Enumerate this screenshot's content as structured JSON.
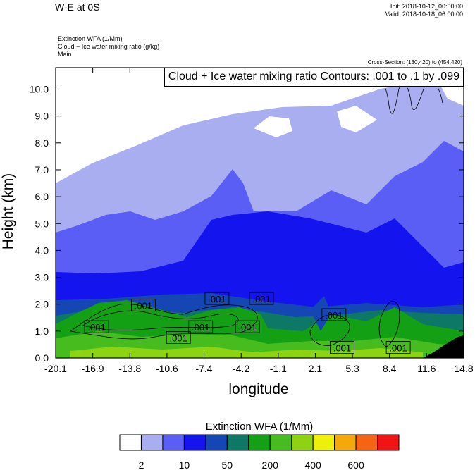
{
  "header": {
    "title": "W-E at 0S",
    "init": "Init: 2018-10-12_00:00:00",
    "valid": "Valid: 2018-10-18_06:00:00",
    "field_lines": [
      "Extinction WFA   (1/Mm)",
      "Cloud + Ice water mixing ratio   (g/kg)",
      "Main"
    ],
    "cross_section": "Cross-Section: (130,420) to (454,420)"
  },
  "contour_legend": "Cloud + Ice water mixing ratio Contours: .001 to .1 by .099",
  "colors": {
    "levels": [
      "#ffffff",
      "#a8aef0",
      "#5a5ef4",
      "#1414ee",
      "#1446b4",
      "#0d7866",
      "#14a014",
      "#46bc1e",
      "#8ed214",
      "#eef00a",
      "#f4a80a",
      "#f46414",
      "#f01414"
    ],
    "terrain": "#000000"
  },
  "chart_data": {
    "type": "heatmap",
    "title": "Cloud + Ice water mixing ratio Contours: .001 to .1 by .099",
    "xlabel": "longitude",
    "ylabel": "Height (km)",
    "xlim": [
      -20.1,
      14.8
    ],
    "ylim": [
      0,
      10.8
    ],
    "x_ticks": [
      "-20.1",
      "-16.9",
      "-13.8",
      "-10.6",
      "-7.4",
      "-4.2",
      "-1.1",
      "2.1",
      "5.3",
      "8.4",
      "11.6",
      "14.8"
    ],
    "y_ticks": [
      "0.0",
      "1.0",
      "2.0",
      "3.0",
      "4.0",
      "5.0",
      "6.0",
      "7.0",
      "8.0",
      "9.0",
      "10.0"
    ],
    "colorbar": {
      "title": "Extinction WFA  (1/Mm)",
      "labels": [
        "2",
        "10",
        "50",
        "200",
        "400",
        "600"
      ],
      "n_bins": 13
    },
    "contour_labels": [
      {
        "text": ".001",
        "x": -16.6,
        "y": 1.15
      },
      {
        "text": ".001",
        "x": -12.6,
        "y": 1.95
      },
      {
        "text": ".001",
        "x": -9.6,
        "y": 0.75
      },
      {
        "text": ".001",
        "x": -7.7,
        "y": 1.15
      },
      {
        "text": ".001",
        "x": -6.3,
        "y": 2.2
      },
      {
        "text": ".001",
        "x": -3.7,
        "y": 1.15
      },
      {
        "text": ".001",
        "x": -2.5,
        "y": 2.2
      },
      {
        "text": ".001",
        "x": 3.7,
        "y": 1.6
      },
      {
        "text": ".001",
        "x": 4.4,
        "y": 0.38
      },
      {
        "text": ".001",
        "x": 9.2,
        "y": 0.38
      }
    ],
    "grid": false,
    "legend": "top-right"
  }
}
